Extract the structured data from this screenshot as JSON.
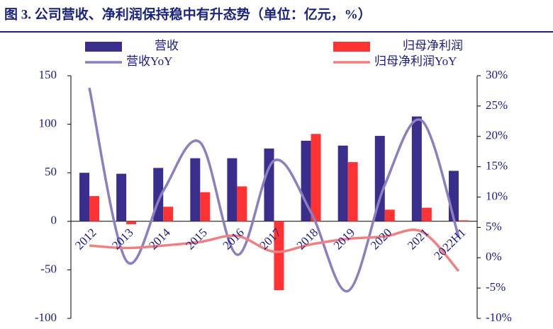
{
  "chart_data": {
    "type": "bar-line",
    "title": "图 3. 公司营收、净利润保持稳中有升态势（单位：亿元，%）",
    "categories": [
      "2012",
      "2013",
      "2014",
      "2015",
      "2016",
      "2017",
      "2018",
      "2019",
      "2020",
      "2021",
      "2022H1"
    ],
    "series": [
      {
        "name": "营收",
        "type": "bar",
        "color": "#3a2e8c",
        "values": [
          50,
          49,
          55,
          65,
          65,
          75,
          83,
          78,
          88,
          108,
          52
        ]
      },
      {
        "name": "归母净利润",
        "type": "bar",
        "color": "#ff3333",
        "values": [
          26,
          -3,
          15,
          30,
          36,
          -71,
          90,
          61,
          12,
          14,
          1
        ]
      },
      {
        "name": "营收YoY",
        "type": "line",
        "axis": "y2",
        "color": "#8a7fc0",
        "values": [
          28,
          -0.5,
          11,
          19,
          0.5,
          16,
          7.5,
          -5.5,
          12,
          22.6,
          3.4
        ]
      },
      {
        "name": "归母净利润YoY",
        "type": "line",
        "axis": "y2",
        "color": "#f08080",
        "values": [
          2,
          1.6,
          2,
          2.6,
          3.6,
          1,
          2.2,
          3.1,
          3.5,
          4.3,
          -2.2
        ]
      }
    ],
    "ylim": [
      -100,
      150
    ],
    "yticks": [
      -100,
      -50,
      0,
      50,
      100,
      150
    ],
    "y2lim": [
      -10,
      30
    ],
    "y2ticks": [
      {
        "value": -10,
        "label": "-10%"
      },
      {
        "value": -5,
        "label": "-5%"
      },
      {
        "value": 0,
        "label": "0%"
      },
      {
        "value": 5,
        "label": "5%"
      },
      {
        "value": 10,
        "label": "10%"
      },
      {
        "value": 15,
        "label": "15%"
      },
      {
        "value": 20,
        "label": "20%"
      },
      {
        "value": 25,
        "label": "25%"
      },
      {
        "value": 30,
        "label": "30%"
      }
    ]
  }
}
